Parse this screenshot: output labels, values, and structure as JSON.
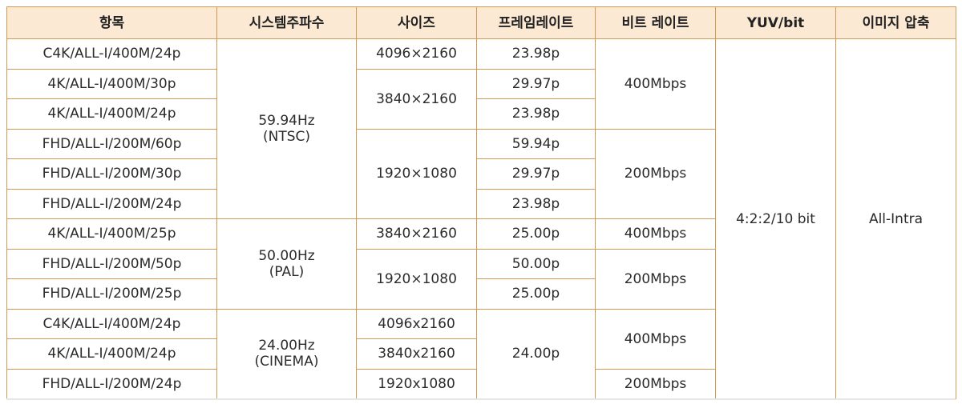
{
  "table": {
    "headers": [
      "항목",
      "시스템주파수",
      "사이즈",
      "프레임레이트",
      "비트 레이트",
      "YUV/bit",
      "이미지 압축"
    ],
    "rows": [
      {
        "item": "C4K/ALL-I/400M/24p",
        "frame_rate": "23.98p"
      },
      {
        "item": "4K/ALL-I/400M/30p",
        "frame_rate": "29.97p"
      },
      {
        "item": "4K/ALL-I/400M/24p",
        "frame_rate": "23.98p"
      },
      {
        "item": "FHD/ALL-I/200M/60p",
        "frame_rate": "59.94p"
      },
      {
        "item": "FHD/ALL-I/200M/30p",
        "frame_rate": "29.97p"
      },
      {
        "item": "FHD/ALL-I/200M/24p",
        "frame_rate": "23.98p"
      },
      {
        "item": "4K/ALL-I/400M/25p",
        "frame_rate": "25.00p"
      },
      {
        "item": "FHD/ALL-I/200M/50p",
        "frame_rate": "50.00p"
      },
      {
        "item": "FHD/ALL-I/200M/25p",
        "frame_rate": "25.00p"
      },
      {
        "item": "C4K/ALL-I/400M/24p"
      },
      {
        "item": "4K/ALL-I/400M/24p"
      },
      {
        "item": "FHD/ALL-I/200M/24p"
      }
    ],
    "system_frequency": [
      {
        "freq": "59.94Hz",
        "standard": "(NTSC)"
      },
      {
        "freq": "50.00Hz",
        "standard": "(PAL)"
      },
      {
        "freq": "24.00Hz",
        "standard": "(CINEMA)"
      }
    ],
    "sizes": [
      "4096×2160",
      "3840×2160",
      "1920×1080",
      "3840×2160",
      "1920×1080",
      "4096x2160",
      "3840x2160",
      "1920x1080"
    ],
    "cinema_frame_rate": "24.00p",
    "bit_rates": [
      "400Mbps",
      "200Mbps",
      "400Mbps",
      "200Mbps",
      "400Mbps",
      "200Mbps"
    ],
    "yuv_bit": "4:2:2/10 bit",
    "image_compression": "All-Intra"
  }
}
